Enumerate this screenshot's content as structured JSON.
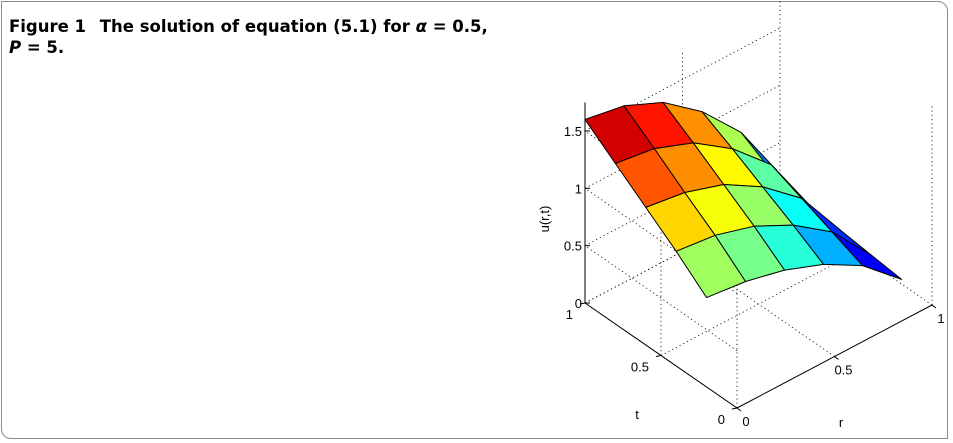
{
  "caption": {
    "label": "Figure 1",
    "text_before_alpha": "The solution of equation (5.1) for ",
    "alpha_symbol": "α",
    "text_after_alpha": " = 0.5,",
    "p_symbol": "P",
    "text_after_p": " = 5."
  },
  "chart_data": {
    "type": "surface",
    "zlabel": "u(r,t)",
    "xlabel": "r",
    "ylabel": "t",
    "xlim": [
      0,
      1
    ],
    "ylim": [
      0,
      1
    ],
    "zlim": [
      0,
      1.5
    ],
    "r_ticks": [
      "0",
      "0.5",
      "1"
    ],
    "t_ticks": [
      "0",
      "0.5",
      "1"
    ],
    "z_ticks": [
      "0",
      "0.5",
      "1",
      "1.5"
    ],
    "colormap": "jet",
    "grid": true,
    "r": [
      0,
      0.2,
      0.4,
      0.6,
      0.8,
      1.0
    ],
    "t": [
      0.2,
      0.4,
      0.6,
      0.8,
      1.0
    ],
    "u": [
      [
        0.78,
        0.74,
        0.66,
        0.53,
        0.34,
        0.04
      ],
      [
        1.0,
        0.96,
        0.86,
        0.69,
        0.45,
        0.07
      ],
      [
        1.2,
        1.15,
        1.04,
        0.84,
        0.56,
        0.1
      ],
      [
        1.4,
        1.35,
        1.22,
        0.99,
        0.67,
        0.13
      ],
      [
        1.6,
        1.54,
        1.39,
        1.13,
        0.77,
        0.16
      ]
    ]
  }
}
